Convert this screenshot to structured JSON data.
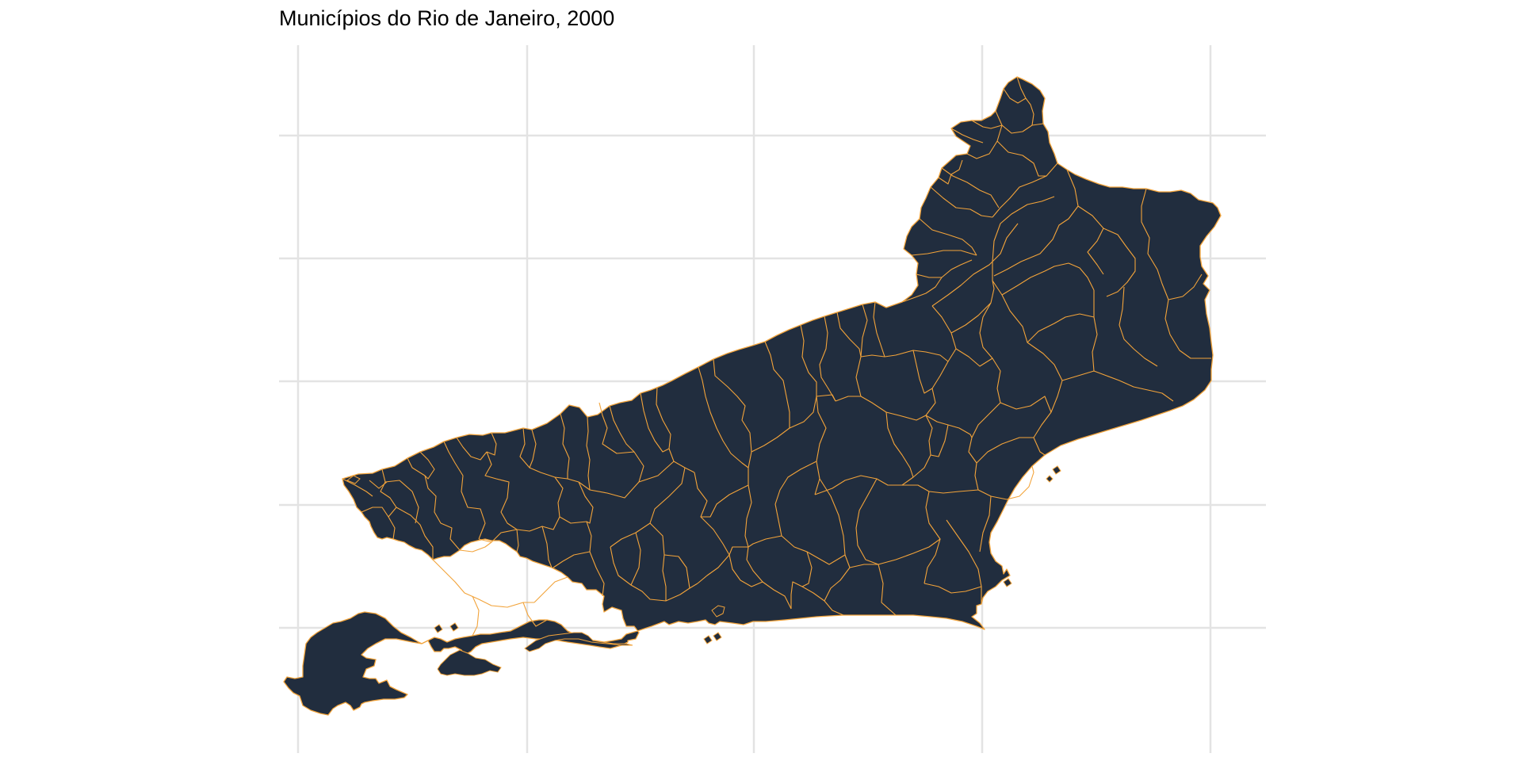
{
  "title": "Municípios do Rio de Janeiro, 2000",
  "map": {
    "region": "Rio de Janeiro",
    "year": "2000",
    "fill_color": "#212d3e",
    "border_color": "#f2a33a",
    "grid_color": "#e3e3e3",
    "background": "#ffffff",
    "grid": true,
    "axis_labels_visible": false
  }
}
